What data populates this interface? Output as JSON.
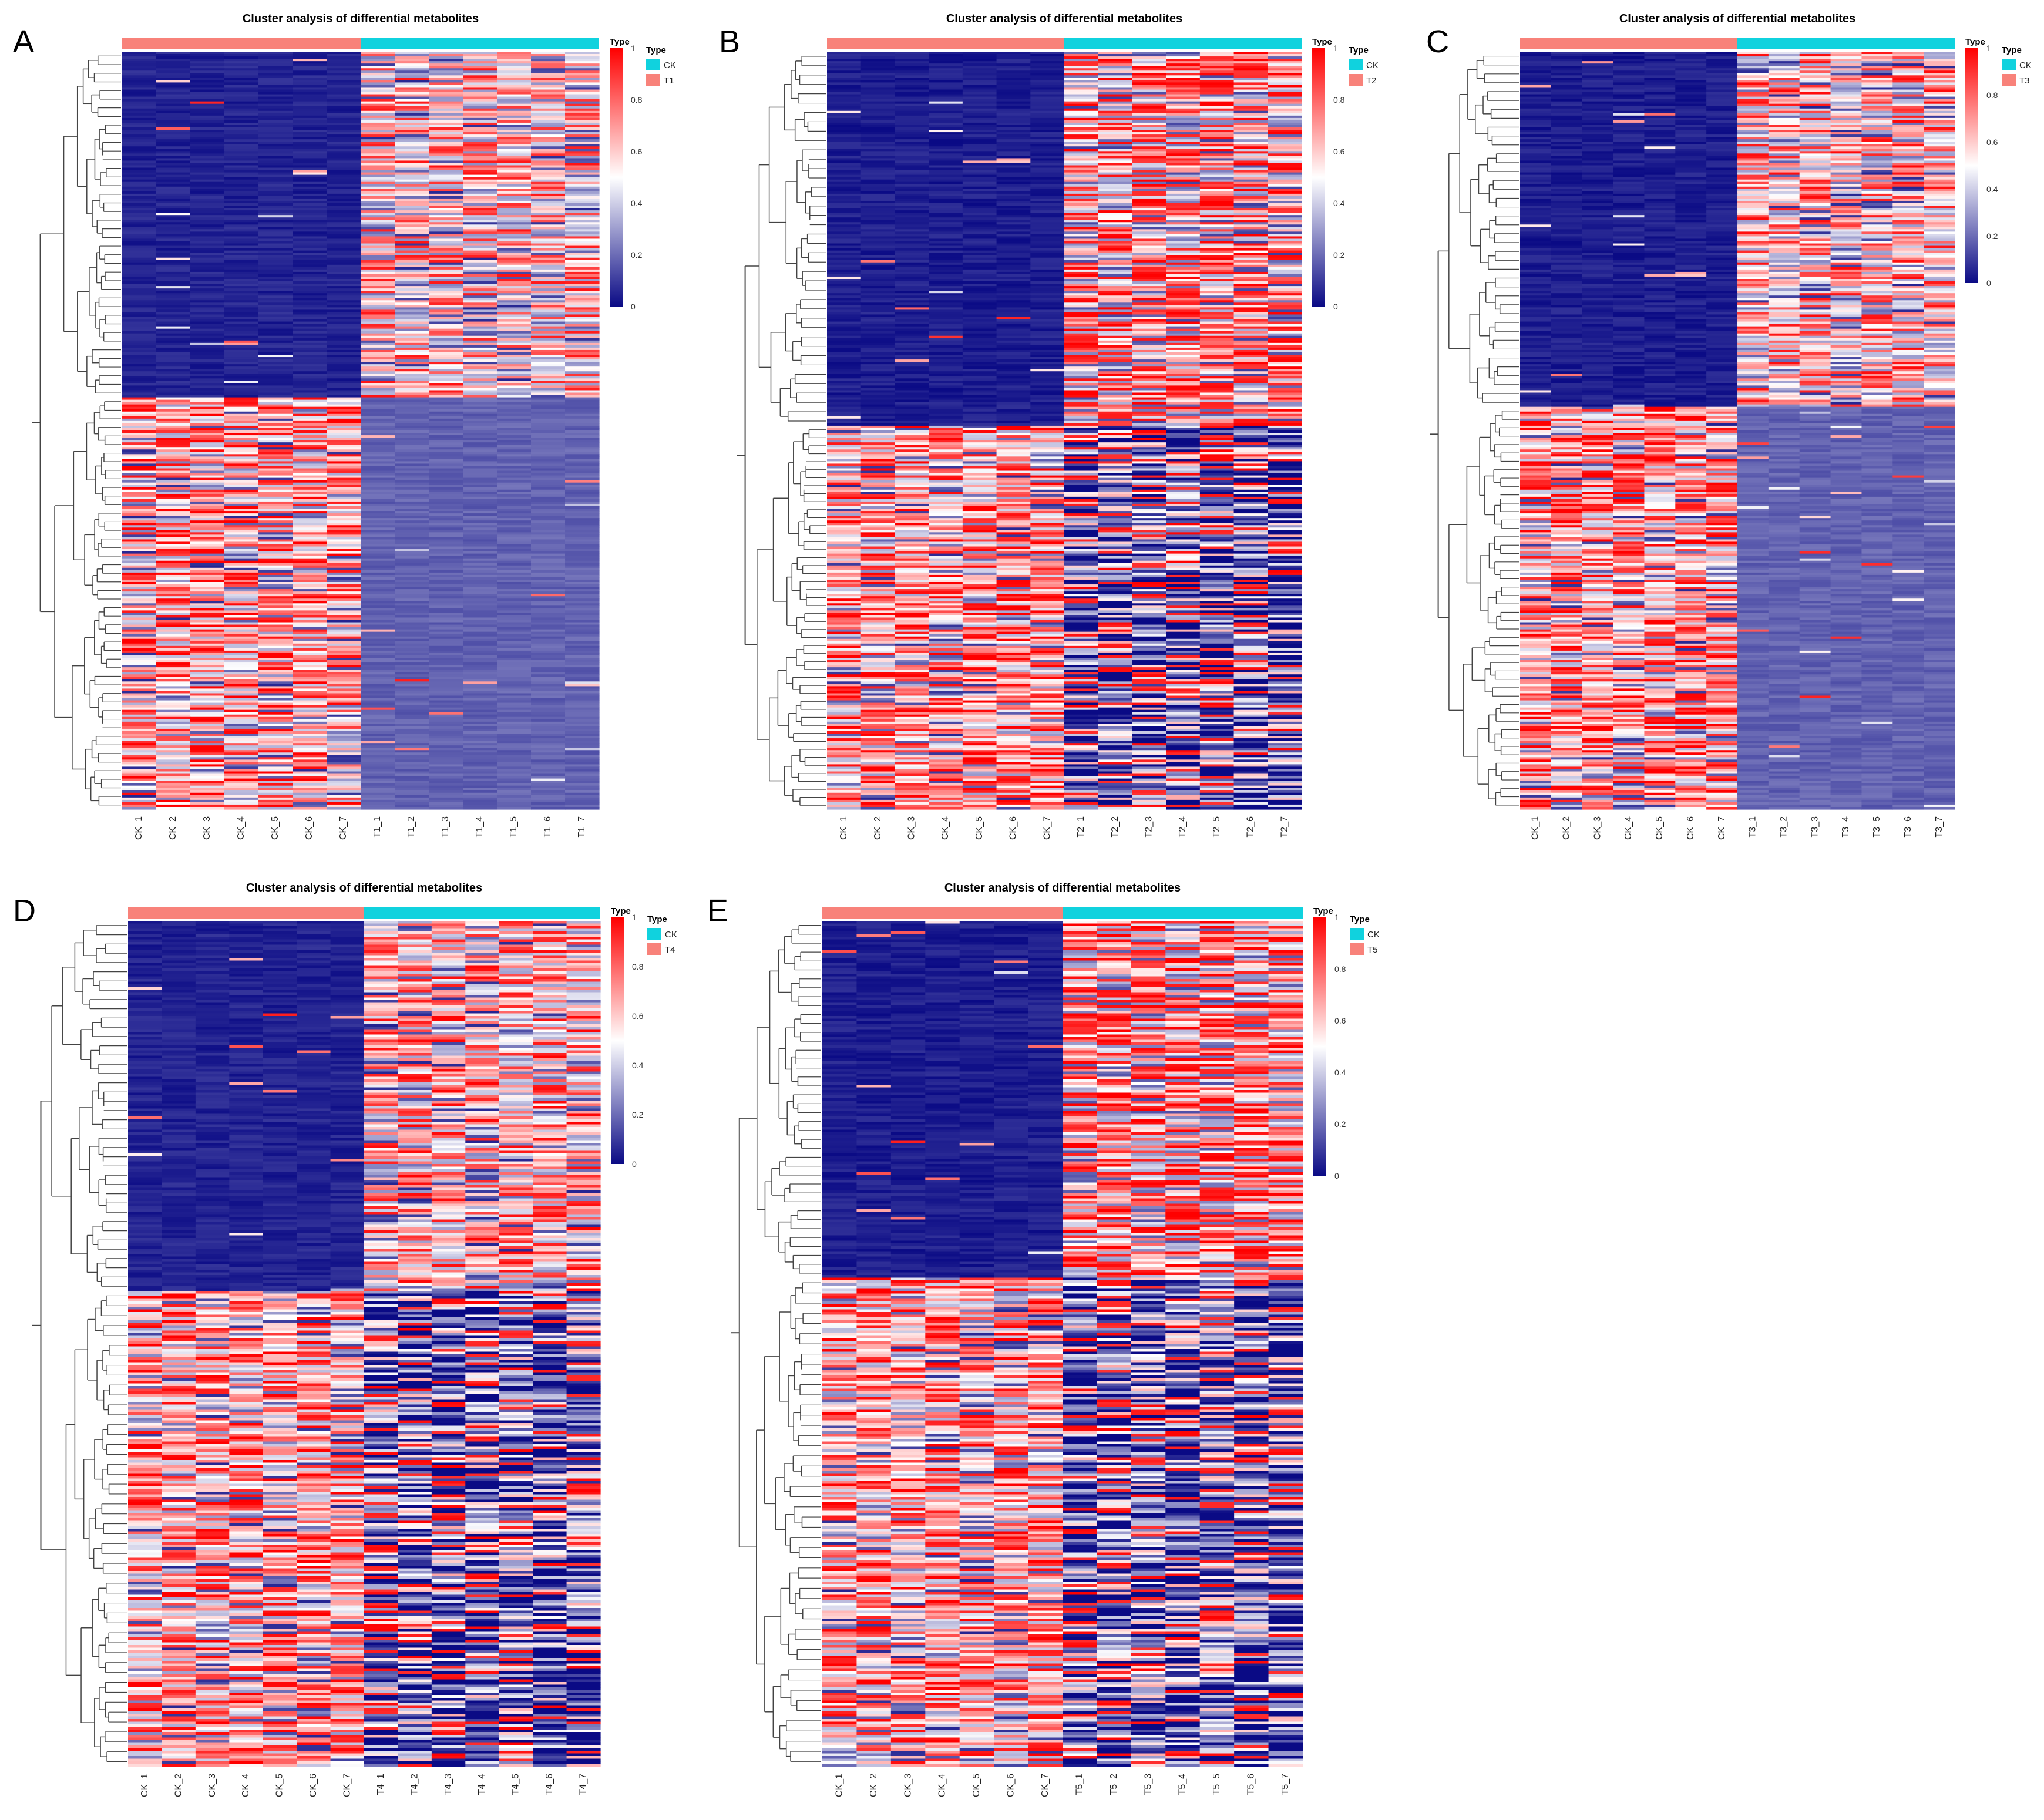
{
  "colors": {
    "low": "#0a0a85",
    "mid": "#ffffff",
    "high": "#ff0000",
    "ck_bar": "#f8827a",
    "treat_bar": "#10d2de",
    "tree": "#444444"
  },
  "chart_data": [
    {
      "type": "heatmap",
      "panel": "A",
      "title": "Cluster analysis of differential metabolites",
      "columns": [
        "CK_1",
        "CK_2",
        "CK_3",
        "CK_4",
        "CK_5",
        "CK_6",
        "CK_7",
        "T1_1",
        "T1_2",
        "T1_3",
        "T1_4",
        "T1_5",
        "T1_6",
        "T1_7"
      ],
      "groups": [
        {
          "name": "CK",
          "count": 7
        },
        {
          "name": "T1",
          "count": 7
        }
      ],
      "legend": {
        "title": "Type",
        "entries": [
          "CK",
          "T1"
        ]
      },
      "scale": {
        "title": "Type",
        "min": 0,
        "max": 1,
        "ticks": [
          "0",
          "0.2",
          "0.4",
          "0.6",
          "0.8",
          "1"
        ]
      },
      "blocks": [
        {
          "rows": 146,
          "ck_level": 0.05,
          "treat_level": 0.62
        },
        {
          "rows": 174,
          "ck_level": 0.7,
          "treat_level": 0.18
        }
      ]
    },
    {
      "type": "heatmap",
      "panel": "B",
      "title": "Cluster analysis of differential metabolites",
      "columns": [
        "CK_1",
        "CK_2",
        "CK_3",
        "CK_4",
        "CK_5",
        "CK_6",
        "CK_7",
        "T2_1",
        "T2_2",
        "T2_3",
        "T2_4",
        "T2_5",
        "T2_6",
        "T2_7"
      ],
      "groups": [
        {
          "name": "CK",
          "count": 7
        },
        {
          "name": "T2",
          "count": 7
        }
      ],
      "legend": {
        "title": "Type",
        "entries": [
          "CK",
          "T2"
        ]
      },
      "scale": {
        "title": "Type",
        "min": 0,
        "max": 1,
        "ticks": [
          "0",
          "0.2",
          "0.4",
          "0.6",
          "0.8",
          "1"
        ]
      },
      "blocks": [
        {
          "rows": 158,
          "ck_level": 0.04,
          "treat_level": 0.58
        },
        {
          "rows": 162,
          "ck_level": 0.72,
          "treat_level": 0.2
        }
      ]
    },
    {
      "type": "heatmap",
      "panel": "C",
      "title": "Cluster analysis of differential metabolites",
      "columns": [
        "CK_1",
        "CK_2",
        "CK_3",
        "CK_4",
        "CK_5",
        "CK_6",
        "CK_7",
        "T3_1",
        "T3_2",
        "T3_3",
        "T3_4",
        "T3_5",
        "T3_6",
        "T3_7"
      ],
      "groups": [
        {
          "name": "CK",
          "count": 7
        },
        {
          "name": "T3",
          "count": 7
        }
      ],
      "legend": {
        "title": "Type",
        "entries": [
          "CK",
          "T3"
        ]
      },
      "scale": {
        "title": "Type",
        "min": 0,
        "max": 1,
        "ticks": [
          "0",
          "0.2",
          "0.4",
          "0.6",
          "0.8",
          "1"
        ]
      },
      "blocks": [
        {
          "rows": 150,
          "ck_level": 0.04,
          "treat_level": 0.64
        },
        {
          "rows": 170,
          "ck_level": 0.72,
          "treat_level": 0.18
        }
      ]
    },
    {
      "type": "heatmap",
      "panel": "D",
      "title": "Cluster analysis of differential metabolites",
      "columns": [
        "CK_1",
        "CK_2",
        "CK_3",
        "CK_4",
        "CK_5",
        "CK_6",
        "CK_7",
        "T4_1",
        "T4_2",
        "T4_3",
        "T4_4",
        "T4_5",
        "T4_6",
        "T4_7"
      ],
      "groups": [
        {
          "name": "CK",
          "count": 7
        },
        {
          "name": "T4",
          "count": 7
        }
      ],
      "legend": {
        "title": "Type",
        "entries": [
          "CK",
          "T4"
        ]
      },
      "scale": {
        "title": "Type",
        "min": 0,
        "max": 1,
        "ticks": [
          "0",
          "0.2",
          "0.4",
          "0.6",
          "0.8",
          "1"
        ]
      },
      "blocks": [
        {
          "rows": 140,
          "ck_level": 0.05,
          "treat_level": 0.65
        },
        {
          "rows": 180,
          "ck_level": 0.7,
          "treat_level": 0.2
        }
      ]
    },
    {
      "type": "heatmap",
      "panel": "E",
      "title": "Cluster analysis of differential metabolites",
      "columns": [
        "CK_1",
        "CK_2",
        "CK_3",
        "CK_4",
        "CK_5",
        "CK_6",
        "CK_7",
        "T5_1",
        "T5_2",
        "T5_3",
        "T5_4",
        "T5_5",
        "T5_6",
        "T5_7"
      ],
      "groups": [
        {
          "name": "CK",
          "count": 7
        },
        {
          "name": "T5",
          "count": 7
        }
      ],
      "legend": {
        "title": "Type",
        "entries": [
          "CK",
          "T5"
        ]
      },
      "scale": {
        "title": "Type",
        "min": 0,
        "max": 1,
        "ticks": [
          "0",
          "0.2",
          "0.4",
          "0.6",
          "0.8",
          "1"
        ]
      },
      "blocks": [
        {
          "rows": 135,
          "ck_level": 0.04,
          "treat_level": 0.6
        },
        {
          "rows": 185,
          "ck_level": 0.7,
          "treat_level": 0.2
        }
      ]
    }
  ]
}
